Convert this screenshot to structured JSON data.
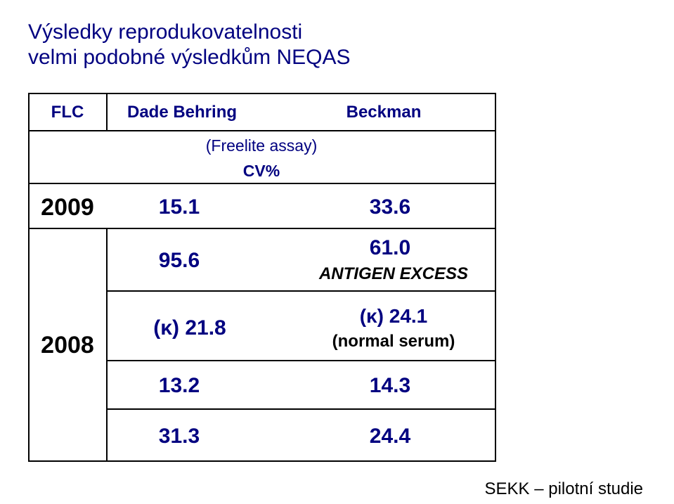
{
  "title": {
    "line1": "Výsledky reprodukovatelnosti",
    "line2": "velmi podobné výsledkům NEQAS"
  },
  "table": {
    "header": {
      "corner": "FLC",
      "col1": "Dade Behring",
      "col2": "Beckman"
    },
    "subheader": {
      "assay": "(Freelite assay)",
      "unit": "CV%"
    },
    "rows": [
      {
        "year": "2009",
        "dade": "15.1",
        "beckman": "33.6"
      },
      {
        "year": "2008",
        "dade": "95.6",
        "beckman": "61.0",
        "beckman_note": "ANTIGEN EXCESS"
      },
      {
        "dade": "(κ) 21.8",
        "beckman": "(κ) 24.1",
        "beckman_note": "(normal serum)"
      },
      {
        "dade": "13.2",
        "beckman": "14.3"
      },
      {
        "dade": "31.3",
        "beckman": "24.4"
      }
    ]
  },
  "footer": "SEKK – pilotní studie",
  "colors": {
    "title": "#000080",
    "text": "#000000",
    "header_blue": "#000080"
  }
}
